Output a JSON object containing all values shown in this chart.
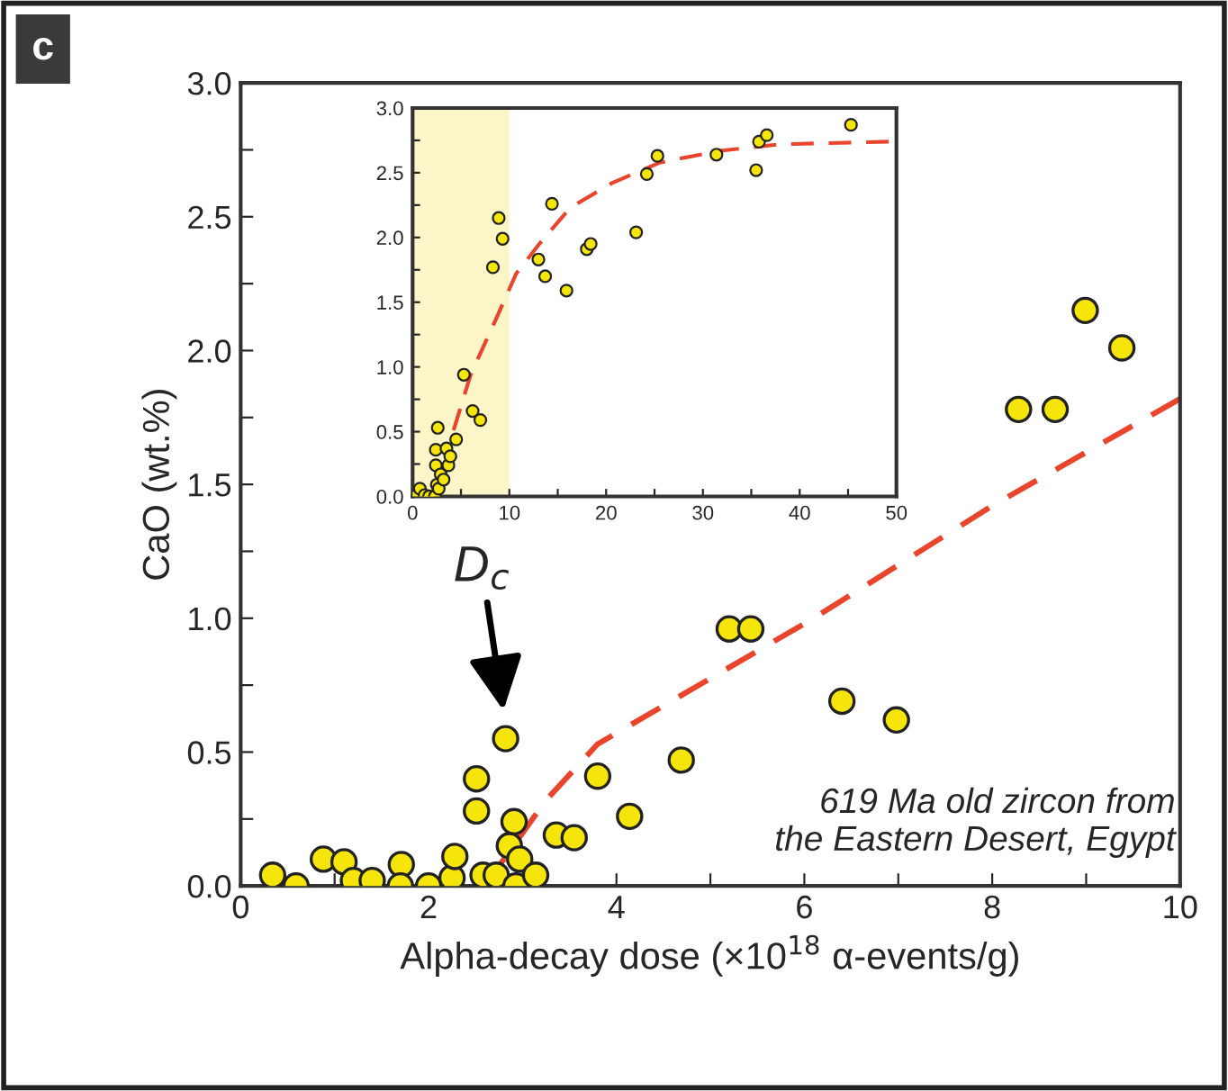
{
  "chart_data": [
    {
      "type": "scatter",
      "xlabel": "Alpha-decay dose (×10$^{18}$ α-events/g)",
      "ylabel": "CaO (wt.%)",
      "xlim": [
        0,
        10
      ],
      "ylim": [
        0,
        3.0
      ],
      "xticks": [
        0,
        {
          "value": 1,
          "label": null
        },
        2,
        {
          "value": 3,
          "label": null
        },
        4,
        {
          "value": 5,
          "label": null
        },
        6,
        {
          "value": 7,
          "label": null
        },
        8,
        {
          "value": 9,
          "label": null
        },
        10
      ],
      "yticks": [
        {
          "value": 0,
          "label": "0.0"
        },
        {
          "value": 0.25,
          "label": null
        },
        0.5,
        {
          "value": 0.75,
          "label": null
        },
        {
          "value": 1,
          "label": "1.0"
        },
        {
          "value": 1.25,
          "label": null
        },
        1.5,
        {
          "value": 1.75,
          "label": null
        },
        {
          "value": 2,
          "label": "2.0"
        },
        {
          "value": 2.25,
          "label": null
        },
        2.5,
        {
          "value": 2.75,
          "label": null
        },
        {
          "value": 3,
          "label": "3.0"
        }
      ],
      "marker": "circle",
      "grid": false,
      "legend": false,
      "annotations": [
        "c",
        {
          "text": "D$_{c}$",
          "x": 2.82,
          "y": 0.6
        },
        "619 Ma old zircon from\nthe Eastern Desert, Egypt"
      ],
      "series": [
        {
          "color": "#f5e50a",
          "x": [
            0.34,
            0.59,
            0.88,
            1.1,
            1.2,
            1.4,
            1.71,
            1.7,
            2.0,
            2.25,
            2.28,
            2.51,
            2.51,
            2.82,
            2.58,
            2.72,
            2.91,
            2.86,
            2.97,
            2.93,
            3.14,
            3.36,
            3.55,
            3.8,
            4.14,
            4.69,
            5.2,
            5.43,
            6.4,
            6.98,
            8.28,
            8.67,
            8.99,
            9.38
          ],
          "values": [
            0.04,
            0.0,
            0.1,
            0.09,
            0.02,
            0.02,
            0.08,
            0.0,
            0.0,
            0.03,
            0.11,
            0.4,
            0.28,
            0.55,
            0.04,
            0.04,
            0.24,
            0.15,
            0.1,
            0.0,
            0.04,
            0.19,
            0.18,
            0.41,
            0.26,
            0.47,
            0.96,
            0.96,
            0.69,
            0.62,
            1.78,
            1.78,
            2.15,
            2.01
          ]
        },
        {
          "type": "line",
          "marker": "none",
          "color": "#e8452c",
          "line_style": "dashed",
          "x": [
            2.7,
            3.25,
            3.8,
            6.1,
            8.0,
            10.0
          ],
          "values": [
            0.05,
            0.32,
            0.53,
            1.0,
            1.42,
            1.82
          ]
        }
      ]
    },
    {
      "type": "scatter",
      "xlim": [
        0,
        50
      ],
      "ylim": [
        0,
        3.0
      ],
      "xticks": [
        0,
        {
          "value": 5,
          "label": null
        },
        10,
        {
          "value": 15,
          "label": null
        },
        20,
        {
          "value": 25,
          "label": null
        },
        30,
        {
          "value": 35,
          "label": null
        },
        40,
        {
          "value": 45,
          "label": null
        },
        50
      ],
      "yticks": [
        {
          "value": 0,
          "label": "0.0"
        },
        {
          "value": 0.25,
          "label": null
        },
        0.5,
        {
          "value": 0.75,
          "label": null
        },
        {
          "value": 1,
          "label": "1.0"
        },
        {
          "value": 1.25,
          "label": null
        },
        1.5,
        {
          "value": 1.75,
          "label": null
        },
        {
          "value": 2,
          "label": "2.0"
        },
        {
          "value": 2.25,
          "label": null
        },
        2.5,
        {
          "value": 2.75,
          "label": null
        },
        {
          "value": 3,
          "label": "3.0"
        }
      ],
      "marker": "circle",
      "grid": false,
      "legend": false,
      "bands": [
        {
          "axis": "x",
          "from": 0,
          "to": 10,
          "color": "#fbf5c8"
        }
      ],
      "series": [
        {
          "color": "#f5e50a",
          "x": [
            0.25,
            0.75,
            1.24,
            1.7,
            2.3,
            2.5,
            2.6,
            2.4,
            2.4,
            2.7,
            2.9,
            3.2,
            3.5,
            3.7,
            3.9,
            4.5,
            5.3,
            6.2,
            7.0,
            8.3,
            8.9,
            9.3,
            13.0,
            13.7,
            14.4,
            15.9,
            18.0,
            18.4,
            23.1,
            24.2,
            25.3,
            31.4,
            35.5,
            35.8,
            36.6,
            45.3
          ],
          "values": [
            0.0,
            0.06,
            0.01,
            0.0,
            0.0,
            0.09,
            0.53,
            0.36,
            0.24,
            0.06,
            0.17,
            0.13,
            0.37,
            0.24,
            0.31,
            0.44,
            0.94,
            0.66,
            0.59,
            1.77,
            2.15,
            1.99,
            1.83,
            1.7,
            2.26,
            1.59,
            1.91,
            1.95,
            2.04,
            2.49,
            2.63,
            2.64,
            2.52,
            2.74,
            2.79,
            2.87
          ]
        },
        {
          "type": "line",
          "marker": "none",
          "color": "#e8452c",
          "line_style": "dashed",
          "x": [
            3.9,
            6.0,
            8.8,
            10.7,
            13.2,
            16.3,
            20.6,
            25.6,
            31.8,
            38.0,
            49.2
          ],
          "values": [
            0.43,
            0.94,
            1.4,
            1.72,
            1.96,
            2.23,
            2.42,
            2.58,
            2.67,
            2.72,
            2.74
          ]
        }
      ]
    }
  ]
}
